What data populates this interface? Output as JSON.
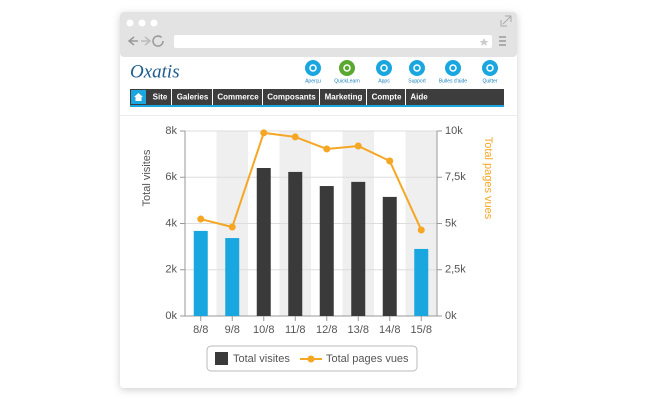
{
  "app": {
    "logo": "Oxatis",
    "toolbar": [
      "Aperçu",
      "QuickLearn",
      "Apps",
      "Support",
      "Bulles d'aide",
      "Quitter"
    ],
    "menu": [
      "Site",
      "Galeries",
      "Commerce",
      "Composants",
      "Marketing",
      "Compte",
      "Aide"
    ]
  },
  "chart_data": {
    "type": "bar-line",
    "y_label": "Total visites",
    "y2_label": "Total pages vues",
    "categories": [
      "8/8",
      "9/8",
      "10/8",
      "11/8",
      "12/8",
      "13/8",
      "14/8",
      "15/8"
    ],
    "series": [
      {
        "name": "Total visites",
        "type": "bar",
        "color": "#3a3a3a",
        "colors": [
          "#1aa6df",
          "#1aa6df",
          "#3a3a3a",
          "#3a3a3a",
          "#3a3a3a",
          "#3a3a3a",
          "#3a3a3a",
          "#1aa6df"
        ],
        "values": [
          3680,
          3370,
          6400,
          6230,
          5620,
          5800,
          5150,
          2900
        ]
      },
      {
        "name": "Total pages vues",
        "type": "line",
        "axis": "y2",
        "color": "#f5a623",
        "values": [
          5240,
          4810,
          9900,
          9680,
          9030,
          9190,
          8380,
          4650
        ]
      }
    ],
    "ylim": [
      0,
      8000
    ],
    "yticks": [
      {
        "value": 0,
        "label": "0k"
      },
      {
        "value": 2000,
        "label": "2k"
      },
      {
        "value": 4000,
        "label": "4k"
      },
      {
        "value": 6000,
        "label": "6k"
      },
      {
        "value": 8000,
        "label": "8k"
      }
    ],
    "y2lim": [
      0,
      10000
    ],
    "y2ticks": [
      {
        "value": 0,
        "label": "0k"
      },
      {
        "value": 2500,
        "label": "2,5k"
      },
      {
        "value": 5000,
        "label": "5k"
      },
      {
        "value": 7500,
        "label": "7,5k"
      },
      {
        "value": 10000,
        "label": "10k"
      }
    ],
    "legend": "bottom"
  }
}
